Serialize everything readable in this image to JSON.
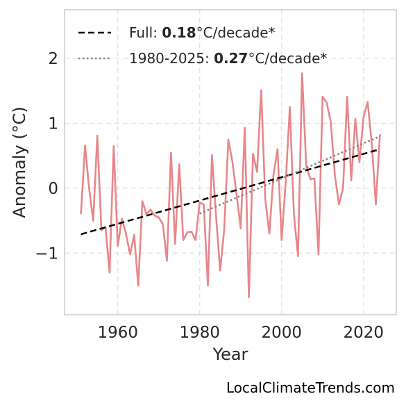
{
  "watermark": "LocalClimateTrends.com",
  "chart_data": {
    "type": "line",
    "title": "",
    "xlabel": "Year",
    "ylabel": "Anomaly (°C)",
    "xlim": [
      1947,
      2028
    ],
    "ylim": [
      -1.95,
      2.75
    ],
    "xticks": [
      1960,
      1980,
      2000,
      2020
    ],
    "xtick_labels": [
      "1960",
      "1980",
      "2000",
      "2020"
    ],
    "yticks": [
      -1,
      0,
      1,
      2
    ],
    "ytick_labels": [
      "−1",
      "0",
      "1",
      "2"
    ],
    "grid": true,
    "legend_position": "top-left",
    "colors": {
      "series": "#e8868a",
      "full_trend": "#000000",
      "recent_trend": "#808080",
      "axes": "#cccccc",
      "grid": "#e0e0e0"
    },
    "series": [
      {
        "x": [
          1951,
          1952,
          1953,
          1954,
          1955,
          1956,
          1957,
          1958,
          1959,
          1960,
          1961,
          1962,
          1963,
          1964,
          1965,
          1966,
          1967,
          1968,
          1969,
          1970,
          1971,
          1972,
          1973,
          1974,
          1975,
          1976,
          1977,
          1978,
          1979,
          1980,
          1981,
          1982,
          1983,
          1984,
          1985,
          1986,
          1987,
          1988,
          1989,
          1990,
          1991,
          1992,
          1993,
          1994,
          1995,
          1996,
          1997,
          1998,
          1999,
          2000,
          2001,
          2002,
          2003,
          2004,
          2005,
          2006,
          2007,
          2008,
          2009,
          2010,
          2011,
          2012,
          2013,
          2014,
          2015,
          2016,
          2017,
          2018,
          2019,
          2020,
          2021,
          2022,
          2023,
          2024
        ],
        "y": [
          -0.4,
          0.66,
          0.0,
          -0.5,
          0.81,
          -0.65,
          -0.6,
          -1.3,
          0.65,
          -0.89,
          -0.47,
          -0.7,
          -1.02,
          -0.72,
          -1.5,
          -0.2,
          -0.4,
          -0.33,
          -0.42,
          -0.45,
          -0.55,
          -1.12,
          0.55,
          -0.86,
          0.37,
          -0.8,
          -0.68,
          -0.67,
          -0.8,
          -0.22,
          -0.25,
          -1.5,
          0.51,
          -0.43,
          -1.27,
          -0.63,
          0.75,
          0.4,
          -0.1,
          -0.62,
          0.93,
          -1.68,
          0.53,
          0.25,
          1.51,
          -0.17,
          -0.7,
          0.2,
          0.6,
          -0.8,
          0.1,
          1.25,
          -0.4,
          -1.05,
          1.77,
          0.35,
          0.14,
          0.15,
          -1.02,
          1.41,
          1.32,
          1.02,
          0.2,
          -0.25,
          0.0,
          1.41,
          0.12,
          1.07,
          0.4,
          1.1,
          1.33,
          0.7,
          -0.25,
          0.83
        ]
      }
    ],
    "trends": [
      {
        "label_prefix": "Full: ",
        "label_value": "0.18",
        "label_suffix": "°C/decade*",
        "style": "dashed",
        "x": [
          1951,
          2024
        ],
        "y": [
          -0.71,
          0.6
        ]
      },
      {
        "label_prefix": "1980-2025: ",
        "label_value": "0.27",
        "label_suffix": "°C/decade*",
        "style": "dotted",
        "x": [
          1980,
          2024
        ],
        "y": [
          -0.39,
          0.8
        ]
      }
    ]
  }
}
